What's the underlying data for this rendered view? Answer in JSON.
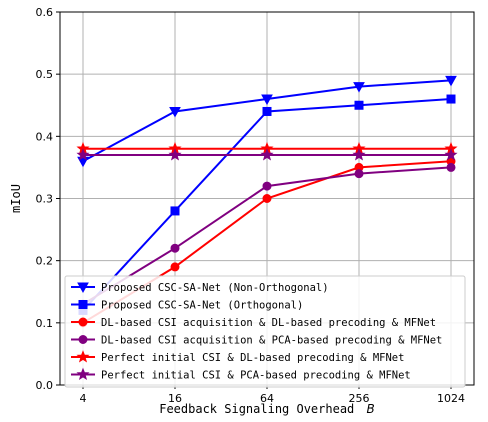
{
  "chart_data": {
    "type": "line",
    "title": "",
    "xlabel": "Feedback Signaling Overhead",
    "xlabel_symbol": "B",
    "ylabel": "mIoU",
    "categories": [
      "4",
      "16",
      "64",
      "256",
      "1024"
    ],
    "ylim": [
      0,
      0.6
    ],
    "yticks": [
      "0.0",
      "0.1",
      "0.2",
      "0.3",
      "0.4",
      "0.5",
      "0.6"
    ],
    "grid": true,
    "legend_position": "bottom-left",
    "series": [
      {
        "name": "Proposed CSC-SA-Net (Non-Orthogonal)",
        "color": "#0000ff",
        "marker": "triangle-down",
        "values": [
          0.36,
          0.44,
          0.46,
          0.48,
          0.49
        ]
      },
      {
        "name": "Proposed CSC-SA-Net (Orthogonal)",
        "color": "#0000ff",
        "marker": "square",
        "values": [
          0.12,
          0.28,
          0.44,
          0.45,
          0.46
        ]
      },
      {
        "name": "DL-based CSI acquisition & DL-based precoding & MFNet",
        "color": "#ff0000",
        "marker": "circle",
        "values": [
          0.1,
          0.19,
          0.3,
          0.35,
          0.36
        ]
      },
      {
        "name": "DL-based CSI acquisition & PCA-based precoding & MFNet",
        "color": "#800080",
        "marker": "circle",
        "values": [
          0.13,
          0.22,
          0.32,
          0.34,
          0.35
        ]
      },
      {
        "name": "Perfect initial CSI & DL-based precoding & MFNet",
        "color": "#ff0000",
        "marker": "star",
        "values": [
          0.38,
          0.38,
          0.38,
          0.38,
          0.38
        ]
      },
      {
        "name": "Perfect initial CSI & PCA-based precoding & MFNet",
        "color": "#800080",
        "marker": "star",
        "values": [
          0.37,
          0.37,
          0.37,
          0.37,
          0.37
        ]
      }
    ]
  }
}
